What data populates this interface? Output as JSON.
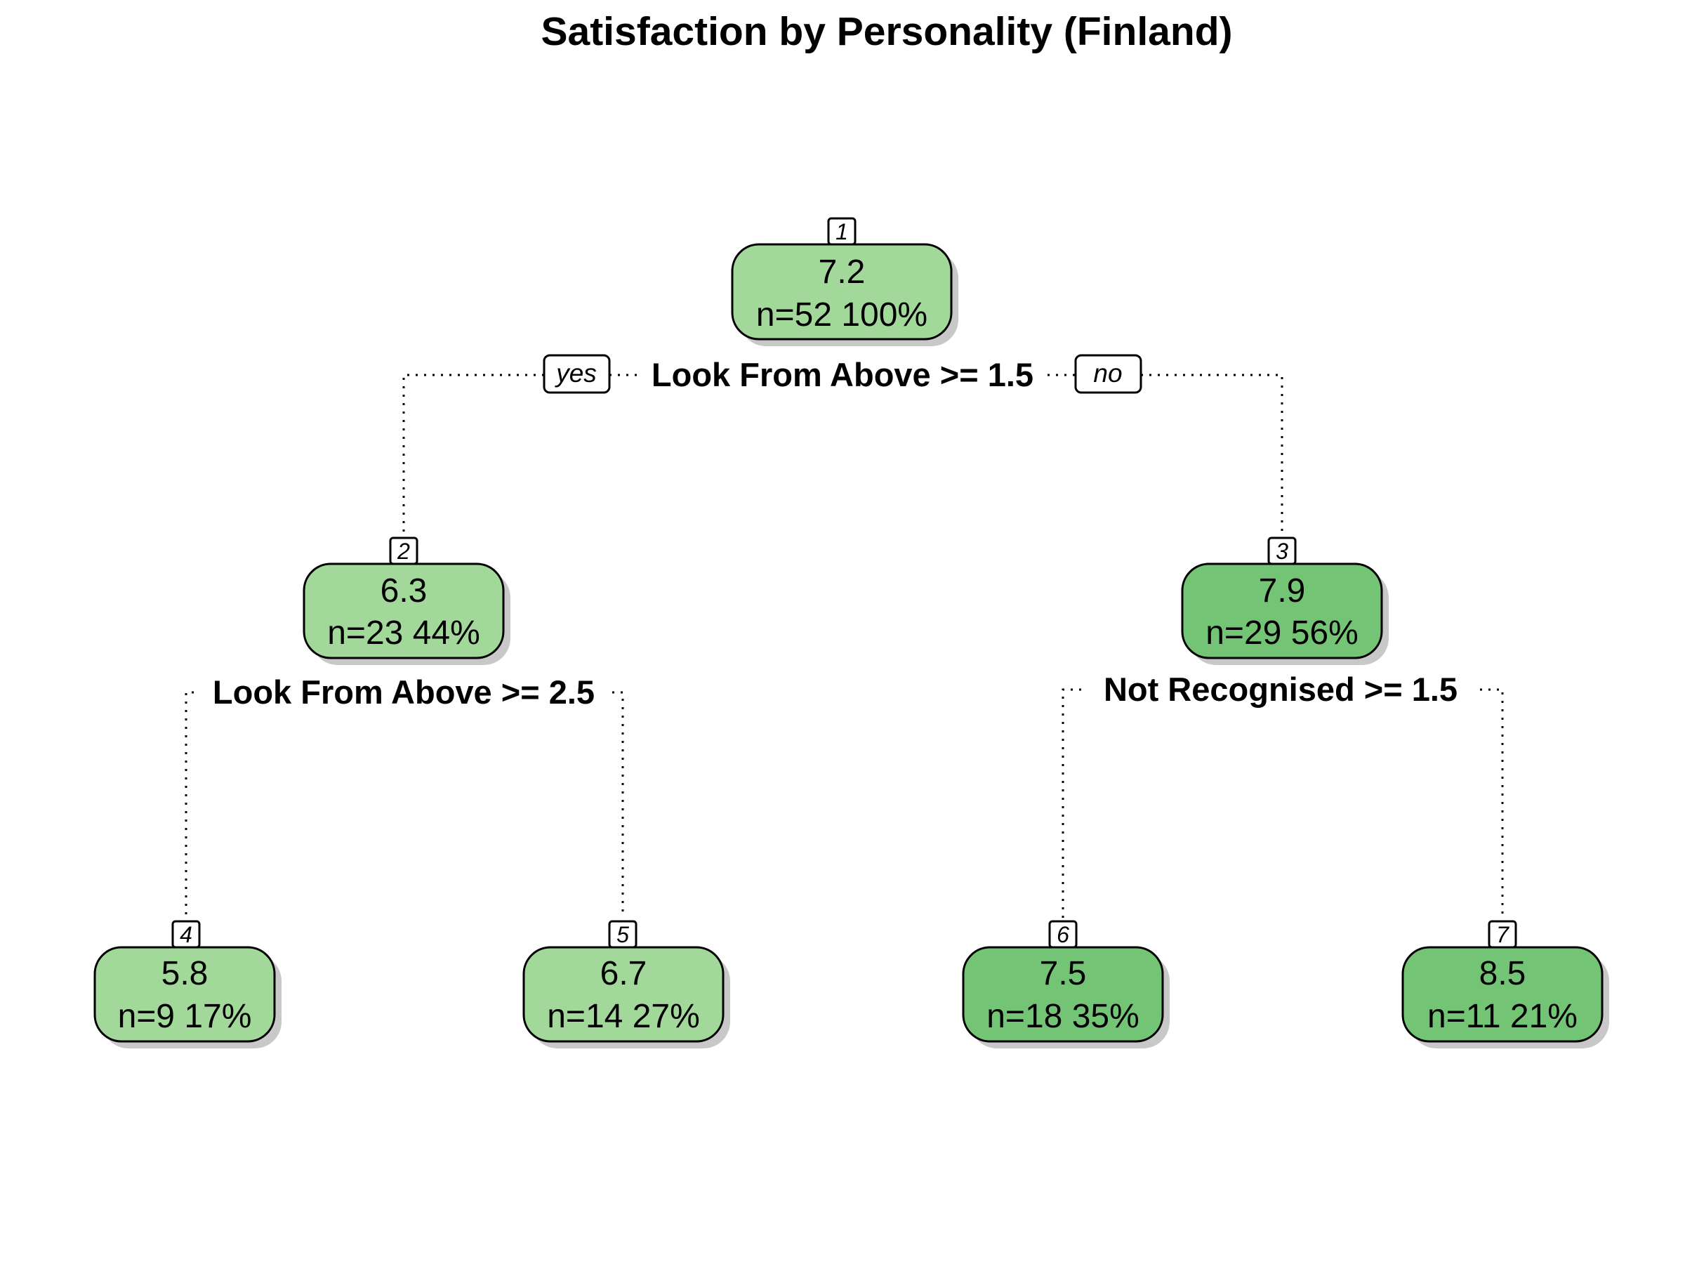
{
  "title": "Satisfaction by Personality (Finland)",
  "root_split": {
    "label": "Look From Above >= 1.5",
    "yes": "yes",
    "no": "no"
  },
  "nodes": [
    {
      "id": "1",
      "value": "7.2",
      "summary": "n=52  100%",
      "color": "#a2d99a"
    },
    {
      "id": "2",
      "value": "6.3",
      "summary": "n=23  44%",
      "color": "#a2d99a"
    },
    {
      "id": "3",
      "value": "7.9",
      "summary": "n=29  56%",
      "color": "#74c476"
    },
    {
      "id": "4",
      "value": "5.8",
      "summary": "n=9  17%",
      "color": "#a2d99a"
    },
    {
      "id": "5",
      "value": "6.7",
      "summary": "n=14  27%",
      "color": "#a2d99a"
    },
    {
      "id": "6",
      "value": "7.5",
      "summary": "n=18  35%",
      "color": "#74c476"
    },
    {
      "id": "7",
      "value": "8.5",
      "summary": "n=11  21%",
      "color": "#74c476"
    }
  ],
  "splits": {
    "node2": "Look From Above >= 2.5",
    "node3": "Not Recognised >= 1.5"
  }
}
